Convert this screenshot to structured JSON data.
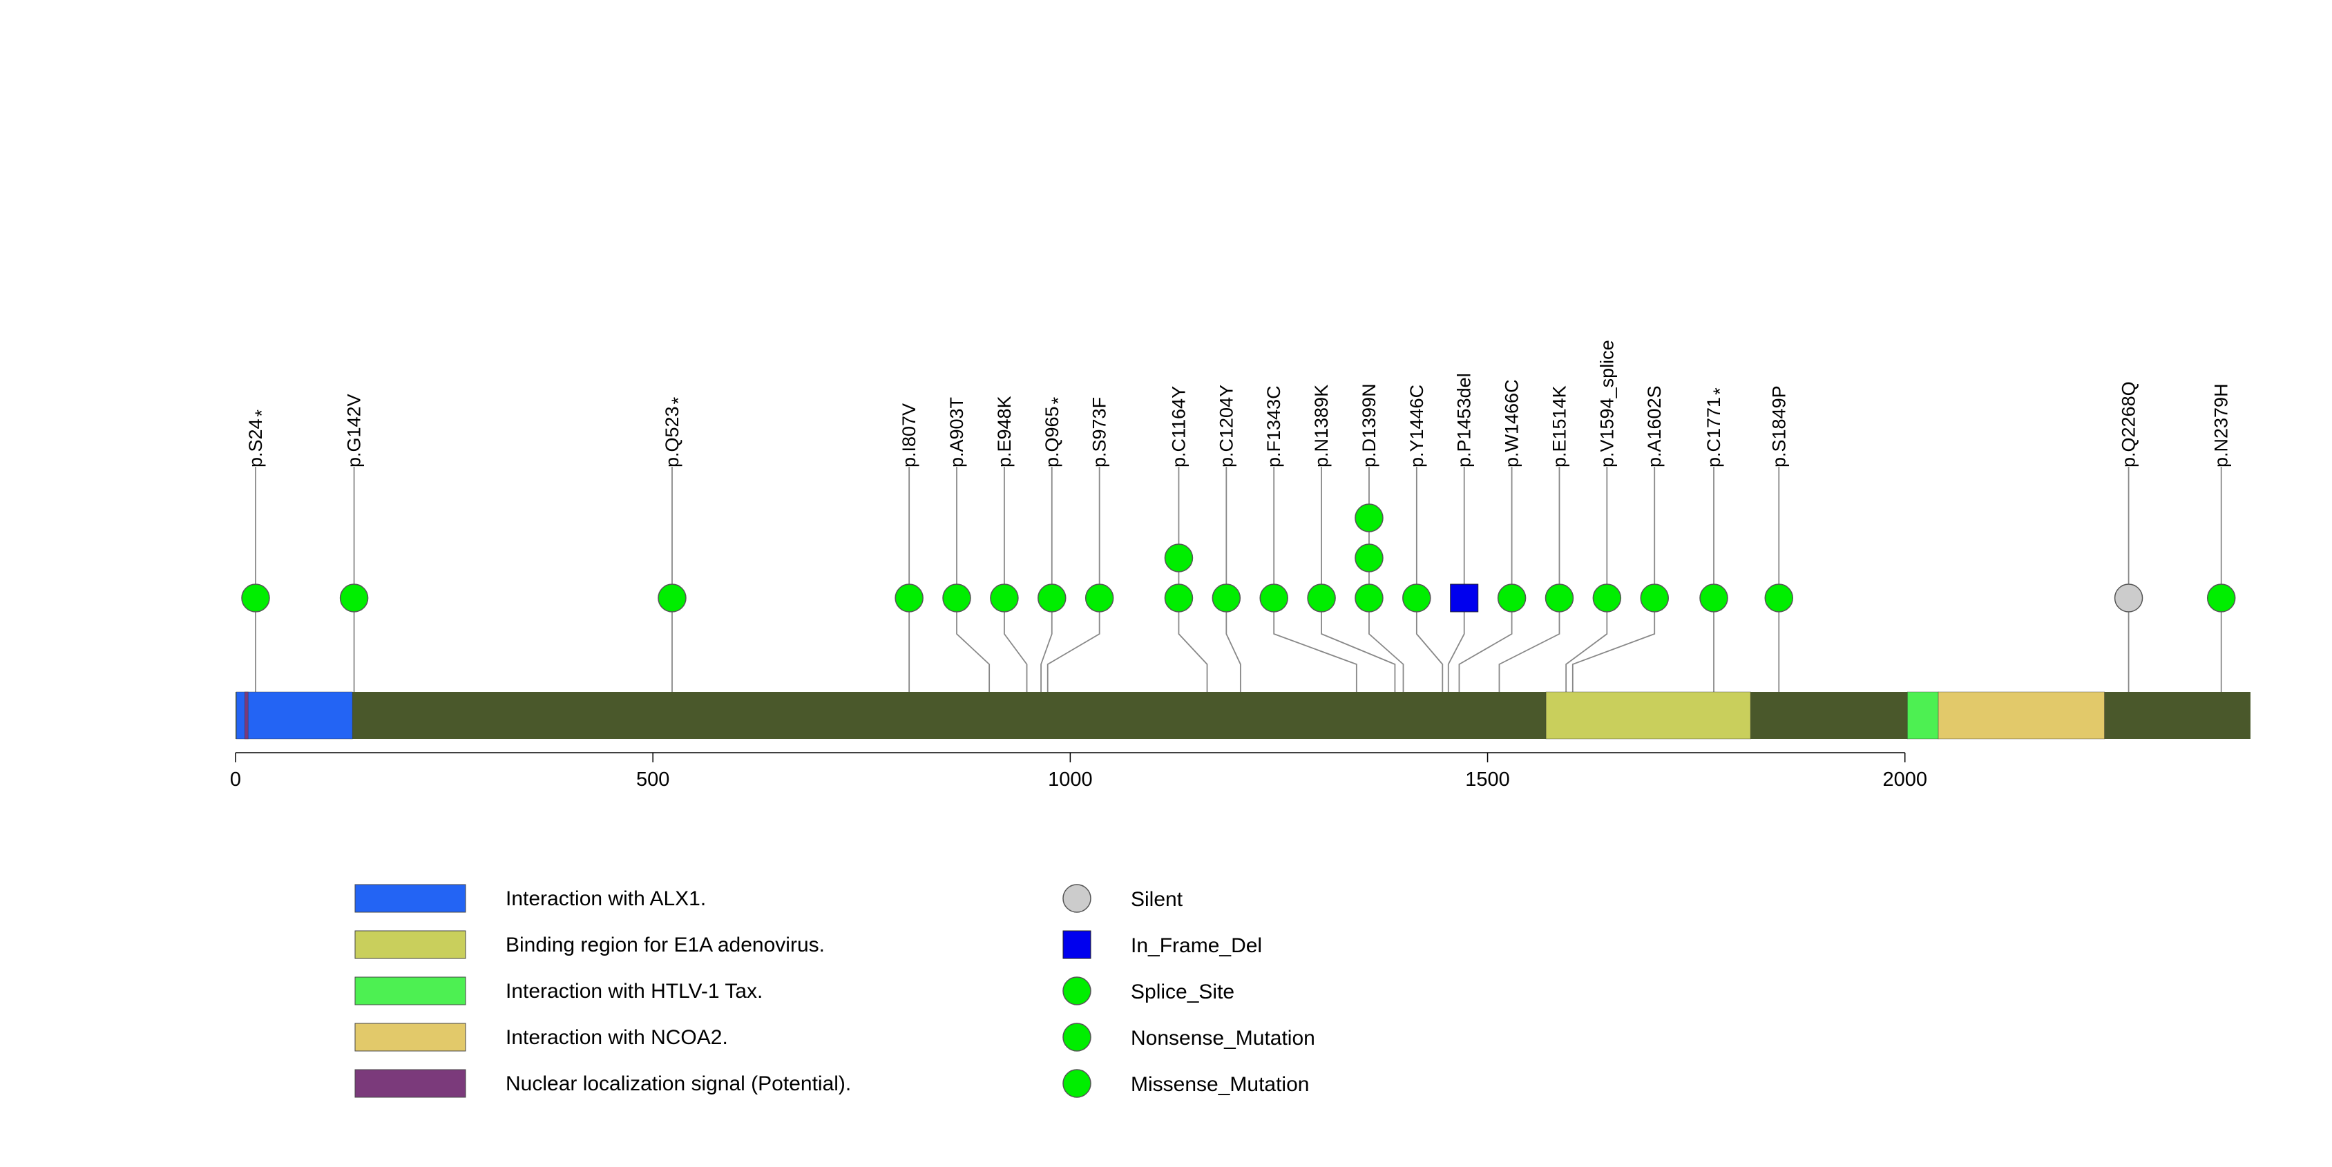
{
  "chart_data": {
    "type": "lollipop",
    "protein_length": 2414,
    "axis": {
      "ticks": [
        0,
        500,
        1000,
        1500,
        2000
      ],
      "tick_labels": [
        "0",
        "500",
        "1000",
        "1500",
        "2000"
      ]
    },
    "domains": [
      {
        "name": "Interaction with ALX1.",
        "start": 1,
        "end": 140,
        "color": "#2364f4"
      },
      {
        "name": "Nuclear localization signal (Potential).",
        "start": 11,
        "end": 14,
        "color": "#7b3a7b"
      },
      {
        "name": "Binding region for E1A adenovirus.",
        "start": 1570,
        "end": 1815,
        "color": "#c9cf5c"
      },
      {
        "name": "Interaction with HTLV-1 Tax.",
        "start": 2003,
        "end": 2040,
        "color": "#4df052"
      },
      {
        "name": "Interaction with NCOA2.",
        "start": 2040,
        "end": 2239,
        "color": "#e2c96a"
      }
    ],
    "mutations": [
      {
        "label": "p.S24",
        "star": true,
        "position": 24,
        "stem": 24,
        "count": 1,
        "type": "Nonsense_Mutation"
      },
      {
        "label": "p.G142V",
        "star": false,
        "position": 142,
        "stem": 142,
        "count": 1,
        "type": "Missense_Mutation"
      },
      {
        "label": "p.Q523",
        "star": true,
        "position": 523,
        "stem": 523,
        "count": 1,
        "type": "Nonsense_Mutation"
      },
      {
        "label": "p.I807V",
        "star": false,
        "position": 807,
        "stem": 807,
        "count": 1,
        "type": "Missense_Mutation"
      },
      {
        "label": "p.A903T",
        "star": false,
        "position": 864,
        "stem": 903,
        "count": 1,
        "type": "Missense_Mutation"
      },
      {
        "label": "p.E948K",
        "star": false,
        "position": 921,
        "stem": 948,
        "count": 1,
        "type": "Missense_Mutation"
      },
      {
        "label": "p.Q965",
        "star": true,
        "position": 978,
        "stem": 965,
        "count": 1,
        "type": "Nonsense_Mutation"
      },
      {
        "label": "p.S973F",
        "star": false,
        "position": 1035,
        "stem": 973,
        "count": 1,
        "type": "Missense_Mutation"
      },
      {
        "label": "p.C1164Y",
        "star": false,
        "position": 1130,
        "stem": 1164,
        "count": 2,
        "type": "Missense_Mutation"
      },
      {
        "label": "p.C1204Y",
        "star": false,
        "position": 1187,
        "stem": 1204,
        "count": 1,
        "type": "Missense_Mutation"
      },
      {
        "label": "p.F1343C",
        "star": false,
        "position": 1244,
        "stem": 1343,
        "count": 1,
        "type": "Missense_Mutation"
      },
      {
        "label": "p.N1389K",
        "star": false,
        "position": 1301,
        "stem": 1389,
        "count": 1,
        "type": "Missense_Mutation"
      },
      {
        "label": "p.D1399N",
        "star": false,
        "position": 1358,
        "stem": 1399,
        "count": 3,
        "type": "Missense_Mutation"
      },
      {
        "label": "p.Y1446C",
        "star": false,
        "position": 1415,
        "stem": 1446,
        "count": 1,
        "type": "Missense_Mutation"
      },
      {
        "label": "p.P1453del",
        "star": false,
        "position": 1472,
        "stem": 1453,
        "count": 1,
        "type": "In_Frame_Del"
      },
      {
        "label": "p.W1466C",
        "star": false,
        "position": 1529,
        "stem": 1466,
        "count": 1,
        "type": "Missense_Mutation"
      },
      {
        "label": "p.E1514K",
        "star": false,
        "position": 1586,
        "stem": 1514,
        "count": 1,
        "type": "Missense_Mutation"
      },
      {
        "label": "p.V1594_splice",
        "star": false,
        "position": 1643,
        "stem": 1594,
        "count": 1,
        "type": "Splice_Site"
      },
      {
        "label": "p.A1602S",
        "star": false,
        "position": 1700,
        "stem": 1602,
        "count": 1,
        "type": "Missense_Mutation"
      },
      {
        "label": "p.C1771",
        "star": true,
        "position": 1771,
        "stem": 1771,
        "count": 1,
        "type": "Nonsense_Mutation"
      },
      {
        "label": "p.S1849P",
        "star": false,
        "position": 1849,
        "stem": 1849,
        "count": 1,
        "type": "Missense_Mutation"
      },
      {
        "label": "p.Q2268Q",
        "star": false,
        "position": 2268,
        "stem": 2268,
        "count": 1,
        "type": "Silent"
      },
      {
        "label": "p.N2379H",
        "star": false,
        "position": 2379,
        "stem": 2379,
        "count": 1,
        "type": "Missense_Mutation"
      }
    ],
    "domain_legend": [
      {
        "label": "Interaction with ALX1.",
        "color": "#2364f4"
      },
      {
        "label": "Binding region for E1A adenovirus.",
        "color": "#c9cf5c"
      },
      {
        "label": "Interaction with HTLV-1 Tax.",
        "color": "#4df052"
      },
      {
        "label": "Interaction with NCOA2.",
        "color": "#e2c96a"
      },
      {
        "label": "Nuclear localization signal (Potential).",
        "color": "#7b3a7b"
      }
    ],
    "mutation_legend": [
      {
        "label": "Silent",
        "shape": "circle",
        "color": "#cccccc"
      },
      {
        "label": "In_Frame_Del",
        "shape": "square",
        "color": "#0000ee"
      },
      {
        "label": "Splice_Site",
        "shape": "circle",
        "color": "#00ee00"
      },
      {
        "label": "Nonsense_Mutation",
        "shape": "circle",
        "color": "#00ee00"
      },
      {
        "label": "Missense_Mutation",
        "shape": "circle",
        "color": "#00ee00"
      }
    ],
    "colors": {
      "backbone": "#4a582b",
      "stem": "#888888",
      "marker_outline": "#555555",
      "Silent": "#cccccc",
      "In_Frame_Del": "#0000ee",
      "Splice_Site": "#00ee00",
      "Nonsense_Mutation": "#00ee00",
      "Missense_Mutation": "#00ee00"
    }
  }
}
